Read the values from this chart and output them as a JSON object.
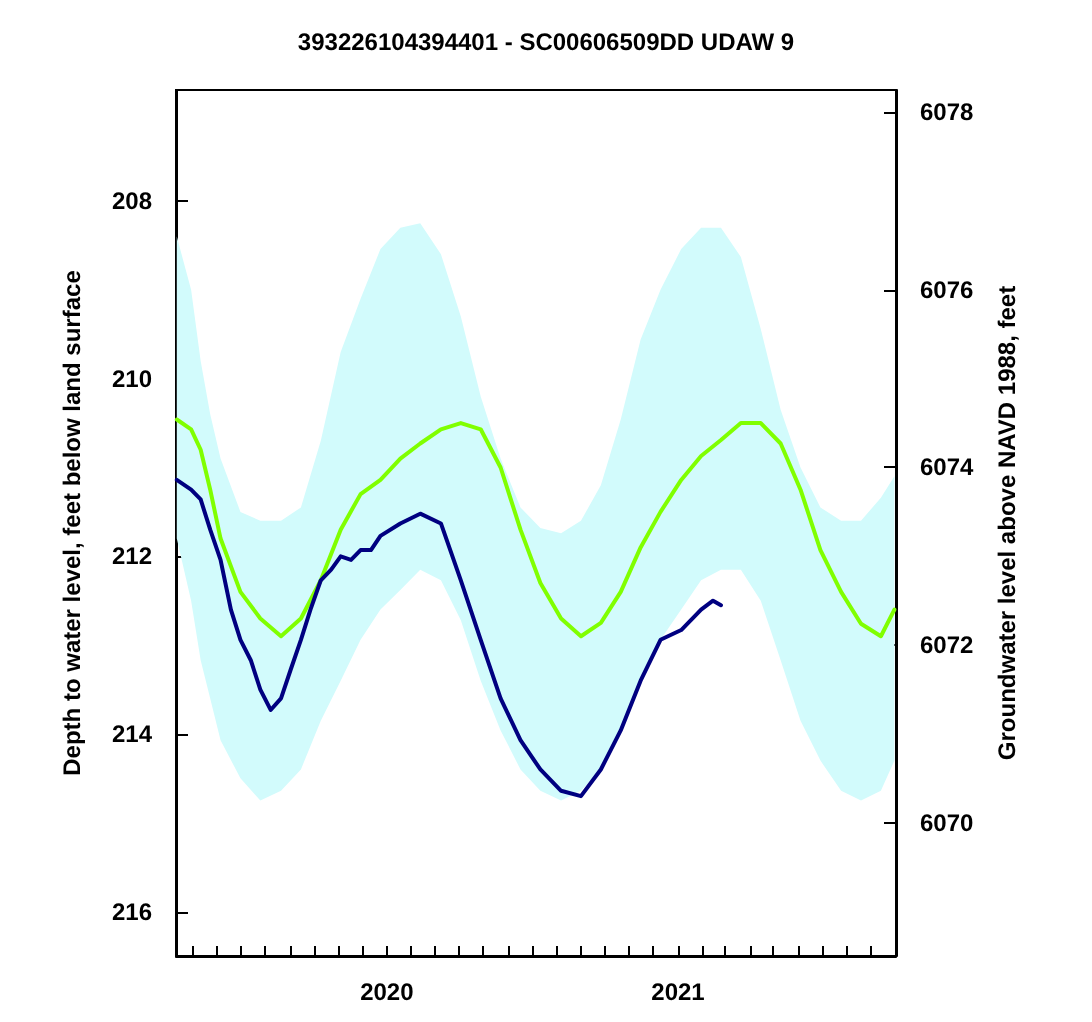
{
  "chart_data": {
    "type": "line",
    "title": "393226104394401 - SC00606509DD UDAW 9",
    "ylabel": "Depth to water level, feet below land surface",
    "y2label": "Groundwater level above NAVD 1988, feet",
    "xlim": [
      "2019-04-11",
      "2021-10-02"
    ],
    "xticks": [
      {
        "value": "2019-05",
        "label": null
      },
      {
        "value": "2019-06",
        "label": null
      },
      {
        "value": "2019-07",
        "label": null
      },
      {
        "value": "2019-08",
        "label": null
      },
      {
        "value": "2019-09",
        "label": null
      },
      {
        "value": "2019-10",
        "label": null
      },
      {
        "value": "2019-11",
        "label": null
      },
      {
        "value": "2019-12",
        "label": null
      },
      {
        "value": "2020",
        "label": "2020"
      },
      {
        "value": "2020-02",
        "label": null
      },
      {
        "value": "2020-03",
        "label": null
      },
      {
        "value": "2020-04",
        "label": null
      },
      {
        "value": "2020-05",
        "label": null
      },
      {
        "value": "2020-06",
        "label": null
      },
      {
        "value": "2020-07",
        "label": null
      },
      {
        "value": "2020-08",
        "label": null
      },
      {
        "value": "2020-09",
        "label": null
      },
      {
        "value": "2020-10",
        "label": null
      },
      {
        "value": "2020-11",
        "label": null
      },
      {
        "value": "2020-12",
        "label": null
      },
      {
        "value": "2021",
        "label": "2021"
      },
      {
        "value": "2021-02",
        "label": null
      },
      {
        "value": "2021-03",
        "label": null
      },
      {
        "value": "2021-04",
        "label": null
      },
      {
        "value": "2021-05",
        "label": null
      },
      {
        "value": "2021-06",
        "label": null
      },
      {
        "value": "2021-07",
        "label": null
      },
      {
        "value": "2021-08",
        "label": null
      },
      {
        "value": "2021-09",
        "label": null
      }
    ],
    "ylim": [
      216.5,
      206.75
    ],
    "yticks": [
      208,
      210,
      212,
      214,
      216
    ],
    "y2lim": [
      6068.5,
      6078.25
    ],
    "y2ticks": [
      6070,
      6072,
      6074,
      6076,
      6078
    ],
    "grid": false,
    "marker": "none",
    "line_style": "solid",
    "series": [
      {
        "color": "#80ff00",
        "x": [
          "2019-04-12",
          "2019-04-30",
          "2019-05-12",
          "2019-05-24",
          "2019-06-06",
          "2019-07-01",
          "2019-07-26",
          "2019-08-21",
          "2019-09-15",
          "2019-10-10",
          "2019-11-04",
          "2019-11-29",
          "2019-12-24",
          "2020-01-18",
          "2020-02-12",
          "2020-03-09",
          "2020-04-03",
          "2020-04-28",
          "2020-05-23",
          "2020-06-17",
          "2020-07-12",
          "2020-08-07",
          "2020-09-01",
          "2020-09-26",
          "2020-10-21",
          "2020-11-15",
          "2020-12-10",
          "2021-01-05",
          "2021-01-30",
          "2021-02-24",
          "2021-03-21",
          "2021-04-15",
          "2021-05-10",
          "2021-06-04",
          "2021-06-29",
          "2021-07-25",
          "2021-08-19",
          "2021-09-13",
          "2021-09-30"
        ],
        "values": [
          210.46,
          210.57,
          210.8,
          211.25,
          211.8,
          212.4,
          212.7,
          212.9,
          212.7,
          212.27,
          211.7,
          211.3,
          211.14,
          210.9,
          210.73,
          210.57,
          210.5,
          210.57,
          211.0,
          211.7,
          212.3,
          212.7,
          212.9,
          212.75,
          212.4,
          211.9,
          211.5,
          211.14,
          210.87,
          210.69,
          210.5,
          210.5,
          210.73,
          211.25,
          211.93,
          212.4,
          212.76,
          212.9,
          212.6
        ],
        "lower": [
          211.8,
          212.5,
          213.17,
          213.6,
          214.07,
          214.5,
          214.75,
          214.64,
          214.4,
          213.85,
          213.4,
          212.94,
          212.6,
          212.38,
          212.15,
          212.27,
          212.72,
          213.4,
          213.96,
          214.4,
          214.64,
          214.75,
          214.64,
          214.4,
          213.96,
          213.4,
          212.94,
          212.6,
          212.27,
          212.15,
          212.15,
          212.5,
          213.17,
          213.85,
          214.3,
          214.64,
          214.75,
          214.64,
          214.3
        ],
        "upper": [
          208.4,
          209.0,
          209.8,
          210.4,
          210.9,
          211.5,
          211.6,
          211.6,
          211.45,
          210.7,
          209.7,
          209.1,
          208.54,
          208.3,
          208.25,
          208.6,
          209.3,
          210.2,
          210.9,
          211.45,
          211.68,
          211.74,
          211.6,
          211.2,
          210.46,
          209.56,
          209.0,
          208.54,
          208.3,
          208.3,
          208.63,
          209.44,
          210.35,
          211.0,
          211.45,
          211.6,
          211.6,
          211.34,
          211.1
        ]
      },
      {
        "color": "#000080",
        "x": [
          "2019-04-12",
          "2019-04-30",
          "2019-05-12",
          "2019-05-24",
          "2019-06-06",
          "2019-06-19",
          "2019-07-01",
          "2019-07-14",
          "2019-07-26",
          "2019-08-08",
          "2019-08-21",
          "2019-09-02",
          "2019-09-15",
          "2019-09-27",
          "2019-10-10",
          "2019-10-23",
          "2019-11-04",
          "2019-11-17",
          "2019-11-29",
          "2019-12-12",
          "2019-12-24",
          "2020-01-18",
          "2020-02-12",
          "2020-03-09",
          "2020-04-03",
          "2020-04-28",
          "2020-05-23",
          "2020-06-17",
          "2020-07-12",
          "2020-08-07",
          "2020-09-01",
          "2020-09-26",
          "2020-10-21",
          "2020-11-15",
          "2020-12-10",
          "2021-01-05",
          "2021-01-30",
          "2021-02-14",
          "2021-02-24"
        ],
        "values": [
          211.14,
          211.25,
          211.36,
          211.7,
          212.04,
          212.6,
          212.94,
          213.17,
          213.5,
          213.73,
          213.6,
          213.28,
          212.94,
          212.6,
          212.27,
          212.15,
          212.0,
          212.04,
          211.93,
          211.93,
          211.77,
          211.63,
          211.52,
          211.63,
          212.27,
          212.94,
          213.6,
          214.07,
          214.4,
          214.64,
          214.7,
          214.4,
          213.96,
          213.4,
          212.94,
          212.83,
          212.6,
          212.5,
          212.55
        ]
      }
    ]
  }
}
